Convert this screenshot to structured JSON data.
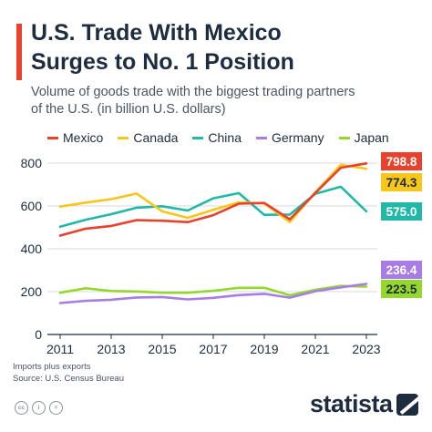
{
  "header": {
    "title_line1": "U.S. Trade With Mexico",
    "title_line2": "Surges to No. 1 Position",
    "subtitle_line1": "Volume of goods trade with the biggest trading partners",
    "subtitle_line2": "of the U.S. (in billion U.S. dollars)"
  },
  "colors": {
    "accent": "#e8412c",
    "text": "#1d2c3e",
    "grid": "#d4d8de"
  },
  "notes": {
    "line1": "Imports plus exports",
    "line2": "Source: U.S. Census Bureau"
  },
  "footer": {
    "license_icons": [
      "cc",
      "i",
      "="
    ],
    "brand": "statista"
  },
  "chart_data": {
    "type": "line",
    "x": [
      2011,
      2012,
      2013,
      2014,
      2015,
      2016,
      2017,
      2018,
      2019,
      2020,
      2021,
      2022,
      2023
    ],
    "xticks": [
      2011,
      2013,
      2015,
      2017,
      2019,
      2021,
      2023
    ],
    "yticks": [
      0,
      200,
      400,
      600,
      800
    ],
    "ylim": [
      0,
      830
    ],
    "grid": true,
    "legend": "top",
    "series": [
      {
        "name": "Mexico",
        "color": "#e8412c",
        "values": [
          462,
          494,
          507,
          534,
          531,
          525,
          557,
          611,
          614,
          538,
          661,
          779,
          798.8
        ],
        "end_label": "798.8"
      },
      {
        "name": "Canada",
        "color": "#f7c619",
        "values": [
          597,
          616,
          632,
          658,
          575,
          545,
          582,
          617,
          612,
          525,
          664,
          792,
          774.3
        ],
        "end_label": "774.3"
      },
      {
        "name": "China",
        "color": "#21b8a7",
        "values": [
          503,
          536,
          562,
          592,
          599,
          579,
          636,
          660,
          559,
          560,
          657,
          690,
          575.0
        ],
        "end_label": "575.0"
      },
      {
        "name": "Germany",
        "color": "#a77ce6",
        "values": [
          147,
          157,
          162,
          173,
          175,
          164,
          171,
          184,
          190,
          172,
          202,
          220,
          236.4
        ],
        "end_label": "236.4"
      },
      {
        "name": "Japan",
        "color": "#94d82d",
        "values": [
          195,
          216,
          203,
          201,
          195,
          195,
          204,
          218,
          218,
          183,
          209,
          227,
          223.5
        ],
        "end_label": "223.5"
      }
    ]
  }
}
